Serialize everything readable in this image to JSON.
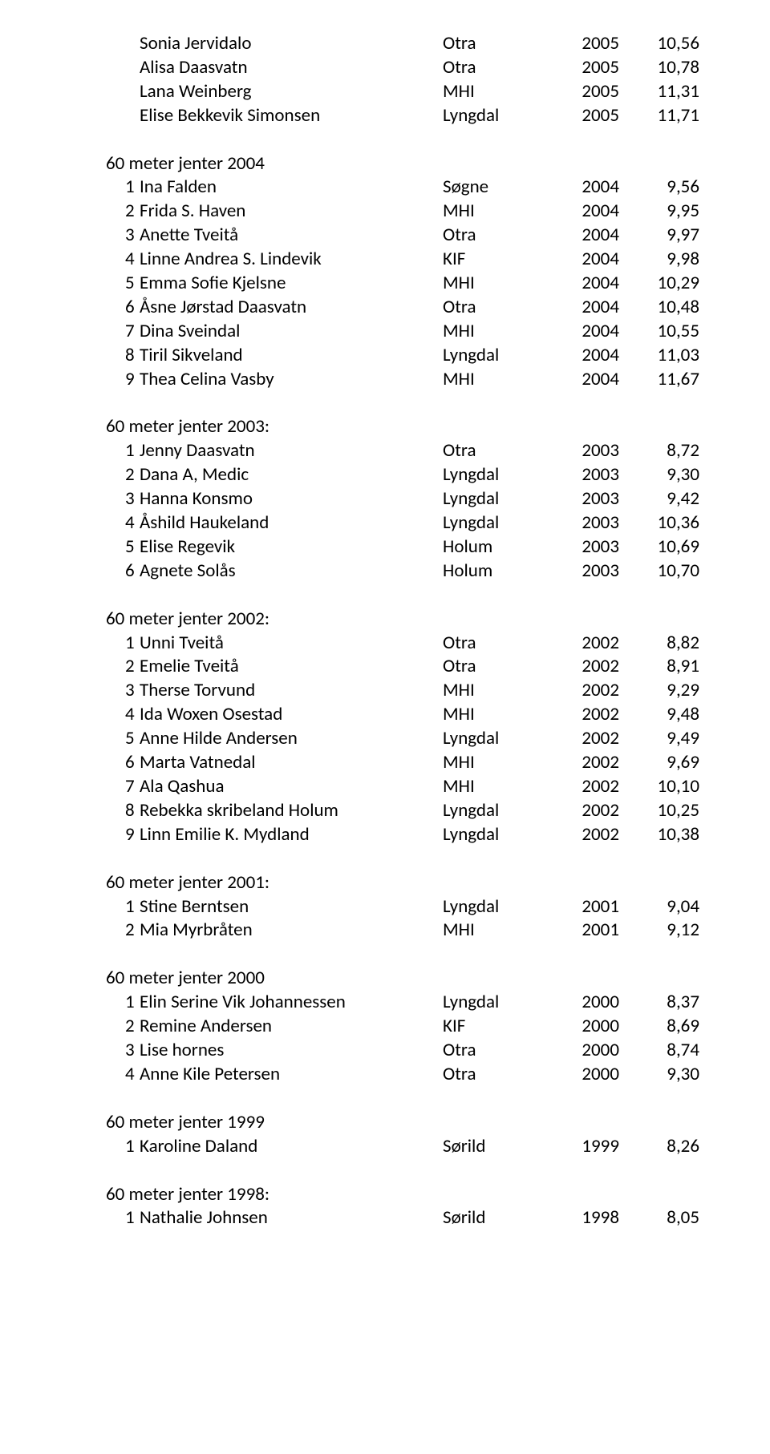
{
  "sections": [
    {
      "title": null,
      "indented": true,
      "rows": [
        {
          "pos": "",
          "name": "Sonia Jervidalo",
          "club": "Otra",
          "year": "2005",
          "val": "10,56"
        },
        {
          "pos": "",
          "name": "Alisa Daasvatn",
          "club": "Otra",
          "year": "2005",
          "val": "10,78"
        },
        {
          "pos": "",
          "name": "Lana Weinberg",
          "club": "MHI",
          "year": "2005",
          "val": "11,31"
        },
        {
          "pos": "",
          "name": "Elise Bekkevik Simonsen",
          "club": "Lyngdal",
          "year": "2005",
          "val": "11,71"
        }
      ]
    },
    {
      "title": "60 meter jenter 2004",
      "indented": false,
      "rows": [
        {
          "pos": "1",
          "name": "Ina Falden",
          "club": "Søgne",
          "year": "2004",
          "val": "9,56"
        },
        {
          "pos": "2",
          "name": "Frida S. Haven",
          "club": "MHI",
          "year": "2004",
          "val": "9,95"
        },
        {
          "pos": "3",
          "name": "Anette Tveitå",
          "club": "Otra",
          "year": "2004",
          "val": "9,97"
        },
        {
          "pos": "4",
          "name": "Linne Andrea S. Lindevik",
          "club": "KIF",
          "year": "2004",
          "val": "9,98"
        },
        {
          "pos": "5",
          "name": "Emma Sofie Kjelsne",
          "club": "MHI",
          "year": "2004",
          "val": "10,29"
        },
        {
          "pos": "6",
          "name": "Åsne Jørstad Daasvatn",
          "club": "Otra",
          "year": "2004",
          "val": "10,48"
        },
        {
          "pos": "7",
          "name": "Dina Sveindal",
          "club": "MHI",
          "year": "2004",
          "val": "10,55"
        },
        {
          "pos": "8",
          "name": "Tiril Sikveland",
          "club": "Lyngdal",
          "year": "2004",
          "val": "11,03"
        },
        {
          "pos": "9",
          "name": "Thea Celina Vasby",
          "club": "MHI",
          "year": "2004",
          "val": "11,67"
        }
      ]
    },
    {
      "title": "60 meter jenter 2003:",
      "indented": false,
      "rows": [
        {
          "pos": "1",
          "name": "Jenny Daasvatn",
          "club": "Otra",
          "year": "2003",
          "val": "8,72"
        },
        {
          "pos": "2",
          "name": "Dana A, Medic",
          "club": "Lyngdal",
          "year": "2003",
          "val": "9,30"
        },
        {
          "pos": "3",
          "name": "Hanna Konsmo",
          "club": "Lyngdal",
          "year": "2003",
          "val": "9,42"
        },
        {
          "pos": "4",
          "name": "Åshild Haukeland",
          "club": "Lyngdal",
          "year": "2003",
          "val": "10,36"
        },
        {
          "pos": "5",
          "name": "Elise Regevik",
          "club": "Holum",
          "year": "2003",
          "val": "10,69"
        },
        {
          "pos": "6",
          "name": "Agnete Solås",
          "club": "Holum",
          "year": "2003",
          "val": "10,70"
        }
      ]
    },
    {
      "title": "60 meter jenter 2002:",
      "indented": false,
      "rows": [
        {
          "pos": "1",
          "name": "Unni Tveitå",
          "club": "Otra",
          "year": "2002",
          "val": "8,82"
        },
        {
          "pos": "2",
          "name": "Emelie Tveitå",
          "club": "Otra",
          "year": "2002",
          "val": "8,91"
        },
        {
          "pos": "3",
          "name": "Therse Torvund",
          "club": "MHI",
          "year": "2002",
          "val": "9,29"
        },
        {
          "pos": "4",
          "name": "Ida Woxen Osestad",
          "club": "MHI",
          "year": "2002",
          "val": "9,48"
        },
        {
          "pos": "5",
          "name": "Anne Hilde Andersen",
          "club": "Lyngdal",
          "year": "2002",
          "val": "9,49"
        },
        {
          "pos": "6",
          "name": "Marta Vatnedal",
          "club": "MHI",
          "year": "2002",
          "val": "9,69"
        },
        {
          "pos": "7",
          "name": "Ala Qashua",
          "club": "MHI",
          "year": "2002",
          "val": "10,10"
        },
        {
          "pos": "8",
          "name": "Rebekka skribeland Holum",
          "club": "Lyngdal",
          "year": "2002",
          "val": "10,25"
        },
        {
          "pos": "9",
          "name": "Linn Emilie K. Mydland",
          "club": "Lyngdal",
          "year": "2002",
          "val": "10,38"
        }
      ]
    },
    {
      "title": "60 meter jenter 2001:",
      "indented": false,
      "rows": [
        {
          "pos": "1",
          "name": "Stine Berntsen",
          "club": "Lyngdal",
          "year": "2001",
          "val": "9,04"
        },
        {
          "pos": "2",
          "name": "Mia Myrbråten",
          "club": "MHI",
          "year": "2001",
          "val": "9,12"
        }
      ]
    },
    {
      "title": "60 meter jenter 2000",
      "indented": false,
      "rows": [
        {
          "pos": "1",
          "name": "Elin Serine Vik Johannessen",
          "club": "Lyngdal",
          "year": "2000",
          "val": "8,37"
        },
        {
          "pos": "2",
          "name": "Remine Andersen",
          "club": "KIF",
          "year": "2000",
          "val": "8,69"
        },
        {
          "pos": "3",
          "name": "Lise hornes",
          "club": "Otra",
          "year": "2000",
          "val": "8,74"
        },
        {
          "pos": "4",
          "name": "Anne Kile Petersen",
          "club": "Otra",
          "year": "2000",
          "val": "9,30"
        }
      ]
    },
    {
      "title": "60 meter jenter 1999",
      "indented": false,
      "rows": [
        {
          "pos": "1",
          "name": "Karoline Daland",
          "club": "Sørild",
          "year": "1999",
          "val": "8,26"
        }
      ]
    },
    {
      "title": "60 meter jenter 1998:",
      "indented": false,
      "rows": [
        {
          "pos": "1",
          "name": "Nathalie Johnsen",
          "club": "Sørild",
          "year": "1998",
          "val": "8,05"
        }
      ]
    }
  ]
}
